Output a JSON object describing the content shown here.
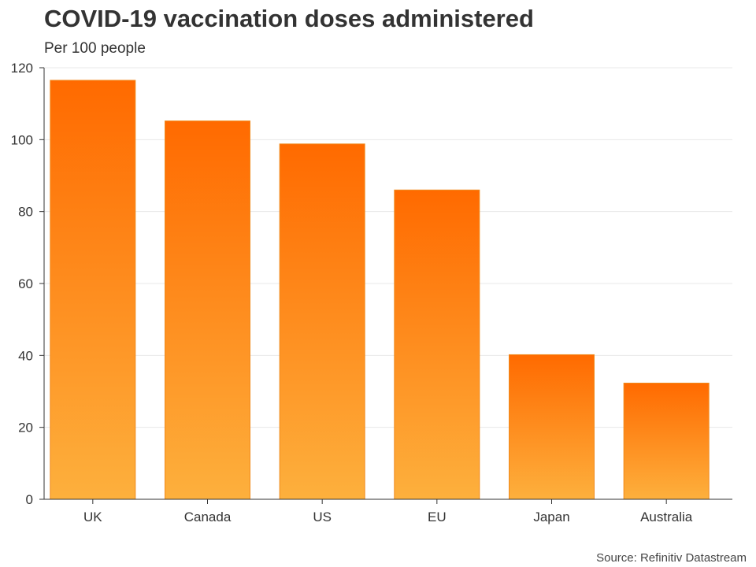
{
  "chart_data": {
    "type": "bar",
    "title": "COVID-19 vaccination doses administered",
    "subtitle": "Per 100 people",
    "xlabel": "",
    "ylabel": "",
    "categories": [
      "UK",
      "Canada",
      "US",
      "EU",
      "Japan",
      "Australia"
    ],
    "values": [
      116.5,
      105.2,
      98.8,
      86.0,
      40.2,
      32.3
    ],
    "ylim": [
      0,
      120
    ],
    "yticks": [
      0,
      20,
      40,
      60,
      80,
      100,
      120
    ],
    "grid": true,
    "source": "Source: Refinitiv Datastream",
    "colors": {
      "bar_top": "#ff6a00",
      "bar_bottom": "#fdb03d",
      "bar_stroke": "#f08a1c",
      "grid": "#e8e8e8",
      "axis": "#333333",
      "text": "#333333"
    }
  }
}
